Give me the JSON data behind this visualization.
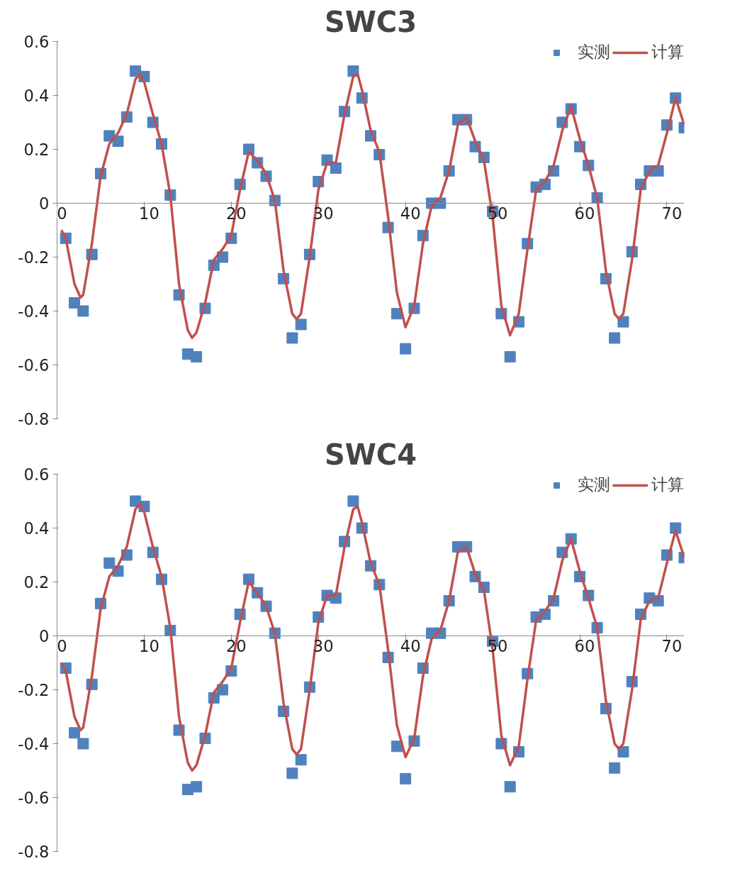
{
  "chart_data": [
    {
      "type": "scatter",
      "title": "SWC3",
      "xlim": [
        0,
        72
      ],
      "ylim": [
        -0.8,
        0.6
      ],
      "xticks": [
        0,
        10,
        20,
        30,
        40,
        50,
        60,
        70
      ],
      "yticks": [
        -0.8,
        -0.6,
        -0.4,
        -0.2,
        0,
        0.2,
        0.4,
        0.6
      ],
      "grid": false,
      "legend": "top right",
      "series": [
        {
          "name": "实测",
          "type": "scatter",
          "marker": "square",
          "color": "#4f81bd",
          "x": [
            1,
            2,
            3,
            4,
            5,
            6,
            7,
            8,
            9,
            10,
            11,
            12,
            13,
            14,
            15,
            16,
            17,
            18,
            19,
            20,
            21,
            22,
            23,
            24,
            25,
            26,
            27,
            28,
            29,
            30,
            31,
            32,
            33,
            34,
            35,
            36,
            37,
            38,
            39,
            40,
            41,
            42,
            43,
            44,
            45,
            46,
            47,
            48,
            49,
            50,
            51,
            52,
            53,
            54,
            55,
            56,
            57,
            58,
            59,
            60,
            61,
            62,
            63,
            64,
            65,
            66,
            67,
            68,
            69,
            70,
            71,
            72
          ],
          "values": [
            -0.13,
            -0.37,
            -0.4,
            -0.19,
            0.11,
            0.25,
            0.23,
            0.32,
            0.49,
            0.47,
            0.3,
            0.22,
            0.03,
            -0.34,
            -0.56,
            -0.57,
            -0.39,
            -0.23,
            -0.2,
            -0.13,
            0.07,
            0.2,
            0.15,
            0.1,
            0.01,
            -0.28,
            -0.5,
            -0.45,
            -0.19,
            0.08,
            0.16,
            0.13,
            0.34,
            0.49,
            0.39,
            0.25,
            0.18,
            -0.09,
            -0.41,
            -0.54,
            -0.39,
            -0.12,
            0.0,
            0.0,
            0.12,
            0.31,
            0.31,
            0.21,
            0.17,
            -0.03,
            -0.41,
            -0.57,
            -0.44,
            -0.15,
            0.06,
            0.07,
            0.12,
            0.3,
            0.35,
            0.21,
            0.14,
            0.02,
            -0.28,
            -0.5,
            -0.44,
            -0.18,
            0.07,
            0.12,
            0.12,
            0.29,
            0.39,
            0.28
          ]
        },
        {
          "name": "计算",
          "type": "line",
          "color": "#c0504d",
          "line_style": "solid",
          "x": [
            0.5,
            1,
            2,
            2.7,
            3,
            4,
            5,
            6,
            7,
            8,
            9,
            9.5,
            10,
            11,
            12,
            13,
            14,
            15,
            15.5,
            16,
            17,
            18,
            19,
            20,
            21,
            22,
            23,
            24,
            25,
            26,
            27,
            27.5,
            28,
            29,
            30,
            31,
            32,
            33,
            34,
            34.5,
            35,
            36,
            37,
            38,
            39,
            40,
            41,
            42,
            43,
            44,
            45,
            46,
            47,
            48,
            49,
            50,
            51,
            52,
            53,
            54,
            55,
            56,
            57,
            58,
            59,
            60,
            61,
            62,
            63,
            64,
            64.5,
            65,
            66,
            67,
            68,
            69,
            70,
            71,
            72
          ],
          "values": [
            -0.1,
            -0.13,
            -0.3,
            -0.35,
            -0.34,
            -0.15,
            0.1,
            0.22,
            0.26,
            0.33,
            0.46,
            0.48,
            0.45,
            0.33,
            0.22,
            0.03,
            -0.3,
            -0.47,
            -0.5,
            -0.48,
            -0.37,
            -0.21,
            -0.17,
            -0.12,
            0.05,
            0.19,
            0.16,
            0.11,
            0.01,
            -0.25,
            -0.41,
            -0.43,
            -0.41,
            -0.2,
            0.05,
            0.15,
            0.15,
            0.33,
            0.47,
            0.48,
            0.42,
            0.27,
            0.19,
            -0.05,
            -0.33,
            -0.46,
            -0.38,
            -0.15,
            -0.01,
            0.02,
            0.12,
            0.29,
            0.32,
            0.23,
            0.16,
            -0.05,
            -0.38,
            -0.49,
            -0.41,
            -0.17,
            0.05,
            0.08,
            0.14,
            0.27,
            0.36,
            0.24,
            0.14,
            0.02,
            -0.25,
            -0.41,
            -0.43,
            -0.41,
            -0.21,
            0.05,
            0.12,
            0.14,
            0.26,
            0.39,
            0.29
          ]
        }
      ]
    },
    {
      "type": "scatter",
      "title": "SWC4",
      "xlim": [
        0,
        72
      ],
      "ylim": [
        -0.8,
        0.6
      ],
      "xticks": [
        0,
        10,
        20,
        30,
        40,
        50,
        60,
        70
      ],
      "yticks": [
        -0.8,
        -0.6,
        -0.4,
        -0.2,
        0,
        0.2,
        0.4,
        0.6
      ],
      "grid": false,
      "legend": "top right",
      "series": [
        {
          "name": "实测",
          "type": "scatter",
          "marker": "square",
          "color": "#4f81bd",
          "x": [
            1,
            2,
            3,
            4,
            5,
            6,
            7,
            8,
            9,
            10,
            11,
            12,
            13,
            14,
            15,
            16,
            17,
            18,
            19,
            20,
            21,
            22,
            23,
            24,
            25,
            26,
            27,
            28,
            29,
            30,
            31,
            32,
            33,
            34,
            35,
            36,
            37,
            38,
            39,
            40,
            41,
            42,
            43,
            44,
            45,
            46,
            47,
            48,
            49,
            50,
            51,
            52,
            53,
            54,
            55,
            56,
            57,
            58,
            59,
            60,
            61,
            62,
            63,
            64,
            65,
            66,
            67,
            68,
            69,
            70,
            71,
            72
          ],
          "values": [
            -0.12,
            -0.36,
            -0.4,
            -0.18,
            0.12,
            0.27,
            0.24,
            0.3,
            0.5,
            0.48,
            0.31,
            0.21,
            0.02,
            -0.35,
            -0.57,
            -0.56,
            -0.38,
            -0.23,
            -0.2,
            -0.13,
            0.08,
            0.21,
            0.16,
            0.11,
            0.01,
            -0.28,
            -0.51,
            -0.46,
            -0.19,
            0.07,
            0.15,
            0.14,
            0.35,
            0.5,
            0.4,
            0.26,
            0.19,
            -0.08,
            -0.41,
            -0.53,
            -0.39,
            -0.12,
            0.01,
            0.01,
            0.13,
            0.33,
            0.33,
            0.22,
            0.18,
            -0.02,
            -0.4,
            -0.56,
            -0.43,
            -0.14,
            0.07,
            0.08,
            0.13,
            0.31,
            0.36,
            0.22,
            0.15,
            0.03,
            -0.27,
            -0.49,
            -0.43,
            -0.17,
            0.08,
            0.14,
            0.13,
            0.3,
            0.4,
            0.29
          ]
        },
        {
          "name": "计算",
          "type": "line",
          "color": "#c0504d",
          "line_style": "solid",
          "x": [
            0.5,
            1,
            2,
            2.7,
            3,
            4,
            5,
            6,
            7,
            8,
            9,
            9.5,
            10,
            11,
            12,
            13,
            14,
            15,
            15.5,
            16,
            17,
            18,
            19,
            20,
            21,
            22,
            23,
            24,
            25,
            26,
            27,
            27.5,
            28,
            29,
            30,
            31,
            32,
            33,
            34,
            34.5,
            35,
            36,
            37,
            38,
            39,
            40,
            41,
            42,
            43,
            44,
            45,
            46,
            47,
            48,
            49,
            50,
            51,
            52,
            53,
            54,
            55,
            56,
            57,
            58,
            59,
            60,
            61,
            62,
            63,
            64,
            64.5,
            65,
            66,
            67,
            68,
            69,
            70,
            71,
            72
          ],
          "values": [
            -0.1,
            -0.13,
            -0.3,
            -0.35,
            -0.34,
            -0.15,
            0.1,
            0.22,
            0.26,
            0.33,
            0.47,
            0.49,
            0.46,
            0.33,
            0.22,
            0.03,
            -0.3,
            -0.47,
            -0.5,
            -0.48,
            -0.37,
            -0.21,
            -0.17,
            -0.12,
            0.05,
            0.2,
            0.16,
            0.11,
            0.01,
            -0.25,
            -0.42,
            -0.44,
            -0.42,
            -0.2,
            0.05,
            0.15,
            0.15,
            0.33,
            0.47,
            0.48,
            0.42,
            0.27,
            0.19,
            -0.05,
            -0.33,
            -0.45,
            -0.38,
            -0.15,
            -0.01,
            0.02,
            0.13,
            0.31,
            0.33,
            0.23,
            0.17,
            -0.05,
            -0.37,
            -0.48,
            -0.41,
            -0.16,
            0.06,
            0.09,
            0.14,
            0.28,
            0.36,
            0.24,
            0.14,
            0.03,
            -0.24,
            -0.4,
            -0.42,
            -0.4,
            -0.2,
            0.06,
            0.13,
            0.14,
            0.27,
            0.39,
            0.29
          ]
        }
      ]
    }
  ]
}
